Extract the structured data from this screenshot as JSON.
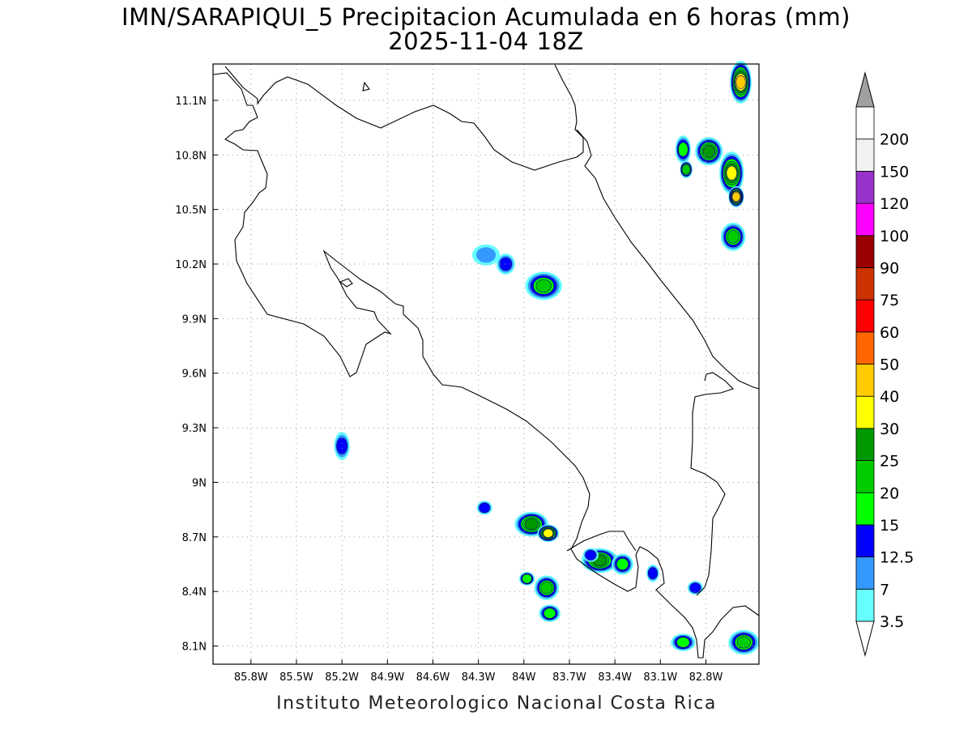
{
  "title": "IMN/SARAPIQUI_5 Precipitacion Acumulada en 6 horas (mm)",
  "subtitle": "2025-11-04 18Z",
  "credit": "Instituto Meteorologico Nacional Costa Rica",
  "map": {
    "lon_range": [
      -86.05,
      -82.45
    ],
    "lat_range": [
      8.0,
      11.3
    ],
    "grid": true,
    "lon_ticks": [
      {
        "value": -85.8,
        "label": "85.8W"
      },
      {
        "value": -85.5,
        "label": "85.5W"
      },
      {
        "value": -85.2,
        "label": "85.2W"
      },
      {
        "value": -84.9,
        "label": "84.9W"
      },
      {
        "value": -84.6,
        "label": "84.6W"
      },
      {
        "value": -84.3,
        "label": "84.3W"
      },
      {
        "value": -84.0,
        "label": "84W"
      },
      {
        "value": -83.7,
        "label": "83.7W"
      },
      {
        "value": -83.4,
        "label": "83.4W"
      },
      {
        "value": -83.1,
        "label": "83.1W"
      },
      {
        "value": -82.8,
        "label": "82.8W"
      }
    ],
    "lat_ticks": [
      {
        "value": 11.1,
        "label": "11.1N"
      },
      {
        "value": 10.8,
        "label": "10.8N"
      },
      {
        "value": 10.5,
        "label": "10.5N"
      },
      {
        "value": 10.2,
        "label": "10.2N"
      },
      {
        "value": 9.9,
        "label": "9.9N"
      },
      {
        "value": 9.6,
        "label": "9.6N"
      },
      {
        "value": 9.3,
        "label": "9.3N"
      },
      {
        "value": 9.0,
        "label": "9N"
      },
      {
        "value": 8.7,
        "label": "8.7N"
      },
      {
        "value": 8.4,
        "label": "8.4N"
      },
      {
        "value": 8.1,
        "label": "8.1N"
      }
    ]
  },
  "colorbar": {
    "labels": [
      "3.5",
      "7",
      "12.5",
      "15",
      "20",
      "25",
      "30",
      "40",
      "50",
      "60",
      "75",
      "90",
      "100",
      "120",
      "150",
      "200"
    ],
    "colors": [
      "#66ffff",
      "#3399ff",
      "#0000ff",
      "#00ff00",
      "#00cc00",
      "#009900",
      "#ffff00",
      "#ffcc00",
      "#ff6600",
      "#ff0000",
      "#cc3300",
      "#990000",
      "#ff00ff",
      "#9933cc",
      "#f2f2f2",
      "#ffffff",
      "#a0a0a0"
    ]
  },
  "precip_cells": [
    {
      "lon": -84.25,
      "lat": 10.25,
      "level": 1,
      "rx": 0.07,
      "ry": 0.04
    },
    {
      "lon": -84.12,
      "lat": 10.2,
      "level": 2,
      "rx": 0.04,
      "ry": 0.04
    },
    {
      "lon": -83.87,
      "lat": 10.08,
      "level": 4,
      "rx": 0.1,
      "ry": 0.06
    },
    {
      "lon": -83.95,
      "lat": 8.77,
      "level": 5,
      "rx": 0.09,
      "ry": 0.05
    },
    {
      "lon": -83.84,
      "lat": 8.72,
      "level": 6,
      "rx": 0.05,
      "ry": 0.03
    },
    {
      "lon": -83.85,
      "lat": 8.42,
      "level": 4,
      "rx": 0.06,
      "ry": 0.05
    },
    {
      "lon": -83.83,
      "lat": 8.28,
      "level": 3,
      "rx": 0.05,
      "ry": 0.03
    },
    {
      "lon": -83.5,
      "lat": 8.57,
      "level": 5,
      "rx": 0.1,
      "ry": 0.05
    },
    {
      "lon": -83.35,
      "lat": 8.55,
      "level": 3,
      "rx": 0.05,
      "ry": 0.04
    },
    {
      "lon": -83.56,
      "lat": 8.6,
      "level": 2,
      "rx": 0.03,
      "ry": 0.02
    },
    {
      "lon": -83.98,
      "lat": 8.47,
      "level": 3,
      "rx": 0.03,
      "ry": 0.02
    },
    {
      "lon": -84.26,
      "lat": 8.86,
      "level": 2,
      "rx": 0.03,
      "ry": 0.02
    },
    {
      "lon": -85.2,
      "lat": 9.2,
      "level": 2,
      "rx": 0.03,
      "ry": 0.06
    },
    {
      "lon": -82.78,
      "lat": 10.82,
      "level": 5,
      "rx": 0.07,
      "ry": 0.06
    },
    {
      "lon": -82.63,
      "lat": 10.7,
      "level": 6,
      "rx": 0.06,
      "ry": 0.1
    },
    {
      "lon": -82.57,
      "lat": 11.2,
      "level": 7,
      "rx": 0.05,
      "ry": 0.1
    },
    {
      "lon": -82.62,
      "lat": 10.35,
      "level": 4,
      "rx": 0.06,
      "ry": 0.06
    },
    {
      "lon": -82.95,
      "lat": 10.83,
      "level": 3,
      "rx": 0.03,
      "ry": 0.06
    },
    {
      "lon": -82.93,
      "lat": 10.72,
      "level": 4,
      "rx": 0.02,
      "ry": 0.03
    },
    {
      "lon": -82.6,
      "lat": 10.57,
      "level": 7,
      "rx": 0.03,
      "ry": 0.04
    },
    {
      "lon": -82.55,
      "lat": 8.12,
      "level": 4,
      "rx": 0.08,
      "ry": 0.05
    },
    {
      "lon": -82.95,
      "lat": 8.12,
      "level": 3,
      "rx": 0.06,
      "ry": 0.03
    },
    {
      "lon": -82.87,
      "lat": 8.42,
      "level": 2,
      "rx": 0.03,
      "ry": 0.02
    },
    {
      "lon": -83.15,
      "lat": 8.5,
      "level": 2,
      "rx": 0.02,
      "ry": 0.03
    }
  ]
}
